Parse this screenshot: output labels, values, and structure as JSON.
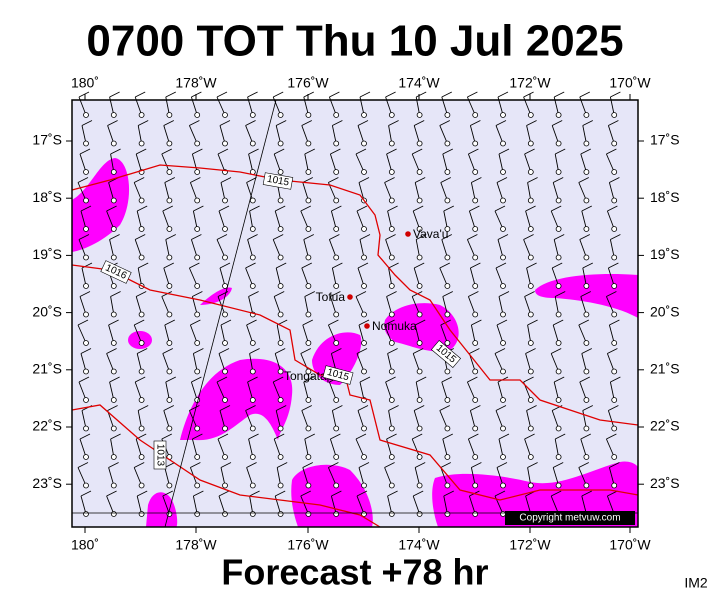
{
  "title": "0700 TOT Thu 10 Jul 2025",
  "footer": "Forecast +78 hr",
  "corner_label": "IM2",
  "copyright": "Copyright metvuw.com",
  "axes": {
    "x_labels": [
      "180˚",
      "178˚W",
      "176˚W",
      "174˚W",
      "172˚W",
      "170˚W"
    ],
    "y_labels": [
      "17˚S",
      "18˚S",
      "19˚S",
      "20˚S",
      "21˚S",
      "22˚S",
      "23˚S"
    ]
  },
  "places": [
    "Vava'u",
    "Tofua",
    "Nomuka",
    "Tongatapu"
  ],
  "isobar_labels": [
    "1015",
    "1016",
    "1015",
    "1015",
    "1013"
  ]
}
